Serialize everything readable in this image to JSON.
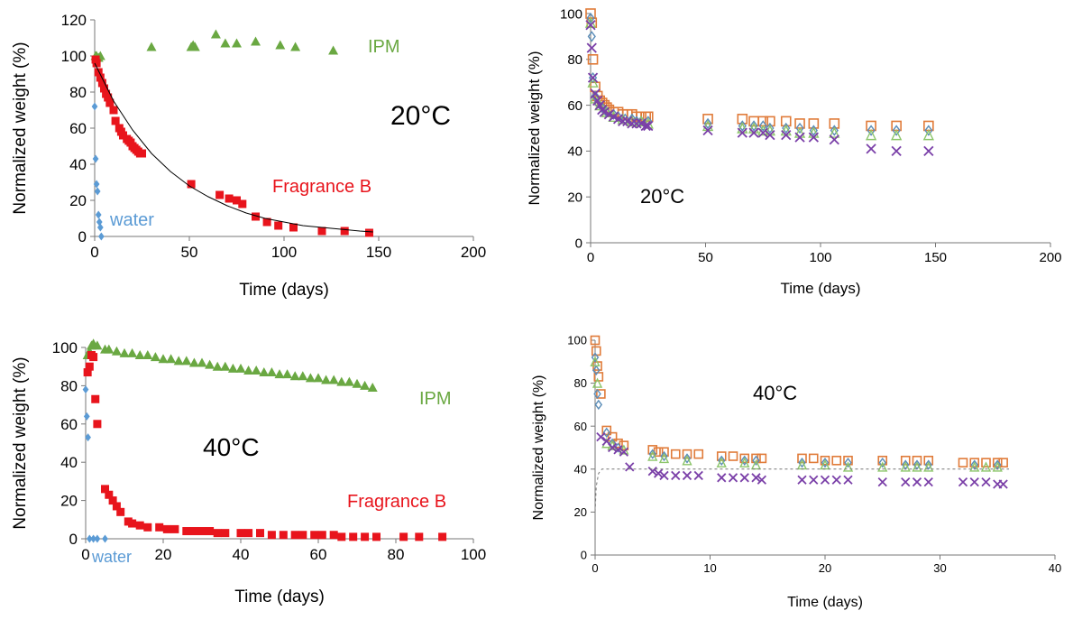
{
  "colors": {
    "fragrance": "#e8141c",
    "ipm": "#6aa842",
    "water": "#5b9bd5",
    "axis": "#777777",
    "fit": "#000000",
    "orange": "#e07b39",
    "teal": "#5b8db8",
    "green": "#8cc56a",
    "purple": "#7a3fa8"
  },
  "chart_data": [
    {
      "type": "scatter",
      "title": "",
      "xlabel": "Time (days)",
      "ylabel": "Normalized weight (%)",
      "xlim": [
        0,
        200
      ],
      "ylim": [
        0,
        120
      ],
      "xticks": [
        "0",
        "50",
        "100",
        "150",
        "200"
      ],
      "yticks": [
        "0",
        "20",
        "40",
        "60",
        "80",
        "100",
        "120"
      ],
      "annotations": {
        "temp": "20°C",
        "ipm": "IPM",
        "fragrance": "Fragrance B",
        "water": "water"
      },
      "series": [
        {
          "name": "IPM",
          "marker": "triangle",
          "color": "ipm",
          "x": [
            0.5,
            1,
            2,
            3,
            30,
            51,
            52,
            53,
            64,
            69,
            75,
            85,
            98,
            106,
            126
          ],
          "y": [
            100,
            100,
            99,
            100,
            105,
            105,
            106,
            105,
            112,
            107,
            107,
            108,
            106,
            105,
            103
          ]
        },
        {
          "name": "Fragrance B",
          "marker": "square",
          "color": "fragrance",
          "x": [
            0.5,
            1,
            2,
            3,
            4,
            5,
            6,
            7,
            8,
            10,
            11,
            13,
            14,
            15,
            17,
            18,
            19,
            20,
            21,
            22,
            23,
            24,
            25,
            51,
            66,
            71,
            75,
            78,
            85,
            91,
            97,
            105,
            120,
            132,
            145
          ],
          "y": [
            98,
            96,
            91,
            88,
            85,
            82,
            79,
            77,
            74,
            70,
            64,
            60,
            58,
            56,
            54,
            53,
            52,
            50,
            49,
            48,
            47,
            46,
            46,
            29,
            23,
            21,
            20,
            18,
            11,
            8,
            6,
            5,
            3,
            3,
            2
          ]
        },
        {
          "name": "water",
          "marker": "diamond",
          "color": "water",
          "x": [
            0,
            0.5,
            1,
            1.5,
            2,
            2.5,
            3,
            3.5
          ],
          "y": [
            72,
            43,
            29,
            25,
            12,
            8,
            5,
            0
          ]
        },
        {
          "name": "fit",
          "line": true,
          "color": "fit",
          "x": [
            0,
            10,
            20,
            30,
            40,
            50,
            60,
            70,
            80,
            90,
            100,
            110,
            120,
            130,
            140,
            147
          ],
          "y": [
            96,
            75,
            59,
            46,
            36,
            28,
            22,
            17,
            13,
            10,
            8,
            6,
            5,
            4,
            3,
            2.5
          ]
        }
      ]
    },
    {
      "type": "scatter",
      "title": "",
      "xlabel": "Time (days)",
      "ylabel": "Normalized weight (%)",
      "xlim": [
        0,
        200
      ],
      "ylim": [
        0,
        100
      ],
      "xticks": [
        "0",
        "50",
        "100",
        "150",
        "200"
      ],
      "yticks": [
        "0",
        "20",
        "40",
        "60",
        "80",
        "100"
      ],
      "annotations": {
        "temp": "20°C"
      },
      "series": [
        {
          "marker": "open-square",
          "color": "orange",
          "x": [
            0,
            0.5,
            1,
            2,
            3,
            4,
            5,
            6,
            7,
            8,
            10,
            12,
            14,
            16,
            18,
            20,
            22,
            24,
            25,
            51,
            66,
            71,
            75,
            78,
            85,
            91,
            97,
            106,
            122,
            133,
            147
          ],
          "y": [
            100,
            96,
            80,
            68,
            64,
            62,
            61,
            60,
            59,
            58,
            57,
            57,
            56,
            56,
            56,
            55,
            55,
            55,
            55,
            54,
            54,
            53,
            53,
            53,
            53,
            52,
            52,
            52,
            51,
            51,
            51
          ]
        },
        {
          "marker": "open-diamond",
          "color": "teal",
          "x": [
            0,
            0.5,
            1,
            2,
            3,
            5,
            7,
            10,
            12,
            15,
            18,
            20,
            22,
            25,
            51,
            66,
            71,
            75,
            78,
            85,
            91,
            97,
            106,
            122,
            133,
            147
          ],
          "y": [
            98,
            90,
            72,
            64,
            61,
            59,
            57,
            56,
            55,
            54,
            54,
            53,
            53,
            53,
            52,
            51,
            51,
            51,
            50,
            50,
            50,
            49,
            49,
            49,
            49,
            49
          ]
        },
        {
          "marker": "open-triangle",
          "color": "green",
          "x": [
            0,
            1,
            2,
            4,
            7,
            10,
            14,
            18,
            22,
            25,
            51,
            66,
            71,
            75,
            78,
            85,
            91,
            97,
            106,
            122,
            133,
            147
          ],
          "y": [
            96,
            70,
            63,
            60,
            57,
            55,
            54,
            53,
            53,
            52,
            51,
            50,
            50,
            49,
            49,
            49,
            48,
            48,
            48,
            47,
            47,
            47
          ]
        },
        {
          "marker": "cross",
          "color": "purple",
          "x": [
            0,
            0.5,
            1,
            2,
            3,
            4,
            5,
            6,
            8,
            10,
            12,
            14,
            16,
            18,
            20,
            22,
            24,
            25,
            51,
            66,
            71,
            75,
            78,
            85,
            91,
            97,
            106,
            122,
            133,
            147
          ],
          "y": [
            95,
            85,
            72,
            65,
            62,
            60,
            58,
            57,
            56,
            55,
            54,
            53,
            53,
            52,
            52,
            52,
            51,
            51,
            49,
            48,
            48,
            48,
            47,
            47,
            46,
            46,
            45,
            41,
            40,
            40
          ]
        }
      ]
    },
    {
      "type": "scatter",
      "title": "",
      "xlabel": "Time (days)",
      "ylabel": "Normalized weight (%)",
      "xlim": [
        0,
        100
      ],
      "ylim": [
        0,
        100
      ],
      "xticks": [
        "0",
        "20",
        "40",
        "60",
        "80",
        "100"
      ],
      "yticks": [
        "0",
        "20",
        "40",
        "60",
        "80",
        "100"
      ],
      "annotations": {
        "temp": "40°C",
        "ipm": "IPM",
        "fragrance": "Fragrance B",
        "water": "water"
      },
      "series": [
        {
          "name": "IPM",
          "marker": "triangle",
          "color": "ipm",
          "x": [
            0.5,
            1,
            1.5,
            2,
            3,
            5,
            6,
            8,
            10,
            12,
            14,
            16,
            18,
            20,
            22,
            24,
            26,
            28,
            30,
            32,
            34,
            36,
            38,
            40,
            42,
            44,
            46,
            48,
            50,
            52,
            54,
            56,
            58,
            60,
            62,
            64,
            66,
            68,
            70,
            72,
            74
          ],
          "y": [
            96,
            98,
            101,
            102,
            101,
            99,
            99,
            98,
            97,
            97,
            96,
            96,
            95,
            94,
            94,
            93,
            93,
            92,
            92,
            91,
            90,
            90,
            89,
            89,
            88,
            88,
            87,
            87,
            86,
            86,
            85,
            85,
            84,
            84,
            83,
            83,
            82,
            82,
            81,
            80,
            79
          ]
        },
        {
          "name": "Fragrance B",
          "marker": "square",
          "color": "fragrance",
          "x": [
            0.5,
            1,
            1.5,
            2,
            2.5,
            3,
            5,
            6,
            7,
            8,
            9,
            11,
            12,
            14,
            16,
            19,
            21,
            23,
            26,
            28,
            30,
            32,
            34,
            36,
            40,
            42,
            45,
            48,
            51,
            54,
            56,
            59,
            61,
            64,
            66,
            69,
            72,
            75,
            82,
            86,
            92
          ],
          "y": [
            87,
            90,
            96,
            95,
            73,
            60,
            26,
            23,
            20,
            17,
            14,
            9,
            8,
            7,
            6,
            6,
            5,
            5,
            4,
            4,
            4,
            4,
            3,
            3,
            3,
            3,
            3,
            2,
            2,
            2,
            2,
            2,
            2,
            2,
            1,
            1,
            1,
            1,
            1,
            1,
            1
          ]
        },
        {
          "name": "water",
          "marker": "diamond",
          "color": "water",
          "x": [
            0,
            0.3,
            0.6,
            1,
            2,
            3,
            5
          ],
          "y": [
            78,
            64,
            53,
            0,
            0,
            0,
            0
          ]
        }
      ]
    },
    {
      "type": "scatter",
      "title": "",
      "xlabel": "Time (days)",
      "ylabel": "Normalized weight (%)",
      "xlim": [
        0,
        40
      ],
      "ylim": [
        0,
        100
      ],
      "xticks": [
        "0",
        "10",
        "20",
        "30",
        "40"
      ],
      "yticks": [
        "0",
        "20",
        "40",
        "60",
        "80",
        "100"
      ],
      "annotations": {
        "temp": "40°C"
      },
      "series": [
        {
          "marker": "open-square",
          "color": "orange",
          "x": [
            0,
            0.1,
            0.2,
            0.3,
            0.5,
            1,
            1.5,
            2,
            2.5,
            5,
            5.5,
            6,
            7,
            8,
            9,
            11,
            12,
            13,
            14,
            14.5,
            18,
            19,
            20,
            21,
            22,
            25,
            27,
            28,
            29,
            32,
            33,
            34,
            35,
            35.5
          ],
          "y": [
            100,
            95,
            88,
            83,
            75,
            58,
            55,
            52,
            51,
            49,
            48,
            48,
            47,
            47,
            47,
            46,
            46,
            45,
            45,
            45,
            45,
            45,
            44,
            44,
            44,
            44,
            44,
            44,
            44,
            43,
            43,
            43,
            43,
            43
          ]
        },
        {
          "marker": "open-diamond",
          "color": "teal",
          "x": [
            0,
            0.1,
            0.2,
            0.3,
            1,
            1.5,
            2,
            5,
            6,
            8,
            11,
            13,
            14,
            18,
            20,
            22,
            25,
            27,
            28,
            29,
            33,
            35
          ],
          "y": [
            92,
            86,
            75,
            70,
            57,
            52,
            50,
            47,
            46,
            45,
            44,
            44,
            44,
            43,
            43,
            43,
            43,
            42,
            42,
            42,
            42,
            42
          ]
        },
        {
          "marker": "open-triangle",
          "color": "green",
          "x": [
            0,
            0.2,
            1,
            1.5,
            2.5,
            5,
            6,
            8,
            11,
            13,
            14,
            18,
            20,
            22,
            25,
            27,
            28,
            29,
            33,
            34,
            35
          ],
          "y": [
            90,
            80,
            52,
            51,
            49,
            46,
            45,
            44,
            43,
            43,
            42,
            42,
            42,
            41,
            41,
            41,
            41,
            41,
            41,
            41,
            41
          ]
        },
        {
          "marker": "cross",
          "color": "purple",
          "x": [
            0.5,
            1,
            1.5,
            2,
            2.5,
            3,
            5,
            5.5,
            6,
            7,
            8,
            9,
            11,
            12,
            13,
            14,
            14.5,
            18,
            19,
            20,
            21,
            22,
            25,
            27,
            28,
            29,
            32,
            33,
            34,
            35,
            35.5
          ],
          "y": [
            55,
            53,
            50,
            49,
            48,
            41,
            39,
            38,
            37,
            37,
            37,
            37,
            36,
            36,
            36,
            36,
            35,
            35,
            35,
            35,
            35,
            35,
            34,
            34,
            34,
            34,
            34,
            34,
            34,
            33,
            33
          ]
        },
        {
          "name": "fit",
          "line": true,
          "dashed": true,
          "color": "axis",
          "x": [
            0,
            0.1,
            0.3,
            0.6,
            1,
            1.5,
            2,
            3,
            5,
            10,
            20,
            36
          ],
          "y": [
            20,
            32,
            38,
            40,
            40,
            40,
            40,
            40,
            40,
            40,
            40,
            40
          ]
        }
      ]
    }
  ]
}
